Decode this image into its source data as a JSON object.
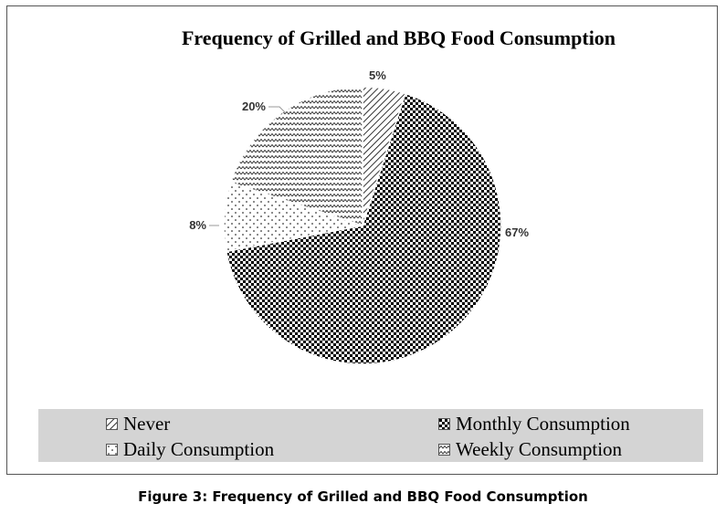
{
  "chart_data": {
    "type": "pie",
    "title": "Frequency of Grilled and BBQ Food Consumption",
    "slices": [
      {
        "label": "Never",
        "value": 5,
        "data_label": "5%",
        "pattern": "diagonal-stripes"
      },
      {
        "label": "Monthly Consumption",
        "value": 67,
        "data_label": "67%",
        "pattern": "checkerboard"
      },
      {
        "label": "Daily Consumption",
        "value": 8,
        "data_label": "8%",
        "pattern": "dots"
      },
      {
        "label": "Weekly Consumption",
        "value": 20,
        "data_label": "20%",
        "pattern": "zigzag"
      }
    ],
    "legend_position": "bottom",
    "legend_order": [
      0,
      1,
      2,
      3
    ]
  },
  "caption": "Figure 3: Frequency of Grilled and BBQ Food Consumption"
}
